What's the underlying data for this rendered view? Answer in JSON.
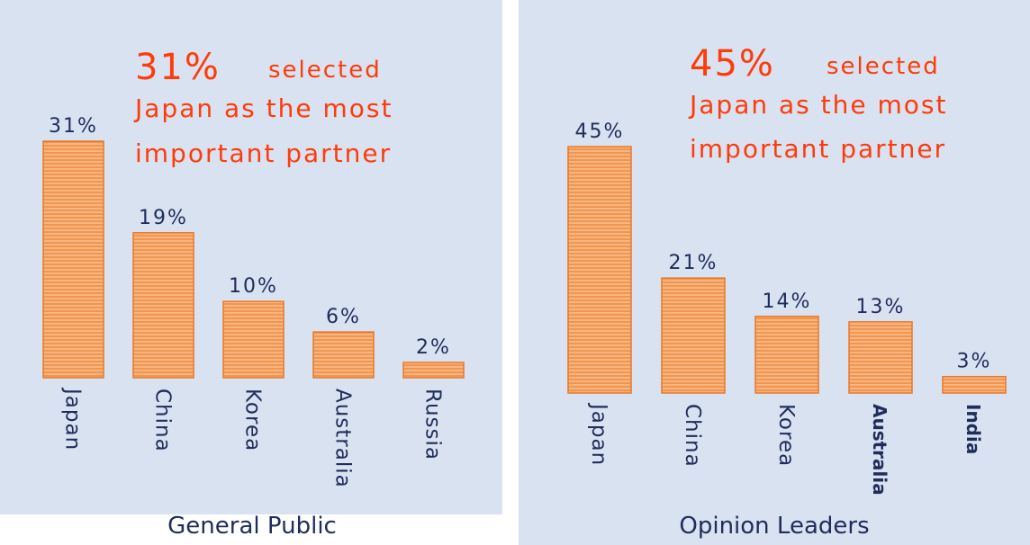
{
  "chart_data": [
    {
      "type": "bar",
      "subtitle": "General Public",
      "annotation": {
        "highlight": "31%",
        "text": "selected",
        "lines": [
          "Japan as the most",
          "important partner"
        ]
      },
      "categories": [
        "Japan",
        "China",
        "Korea",
        "Australia",
        "Russia"
      ],
      "values": [
        31,
        19,
        10,
        6,
        2
      ],
      "value_labels": [
        "31%",
        "19%",
        "10%",
        "6%",
        "2%"
      ],
      "color": "#f7a564"
    },
    {
      "type": "bar",
      "subtitle": "Opinion Leaders",
      "annotation": {
        "highlight": "45%",
        "text": "selected",
        "lines": [
          "Japan as the most",
          "important partner"
        ]
      },
      "categories": [
        "Japan",
        "China",
        "Korea",
        "Australia",
        "India"
      ],
      "values": [
        45,
        21,
        14,
        13,
        3
      ],
      "value_labels": [
        "45%",
        "21%",
        "14%",
        "13%",
        "3%"
      ],
      "color": "#f7a564"
    }
  ]
}
